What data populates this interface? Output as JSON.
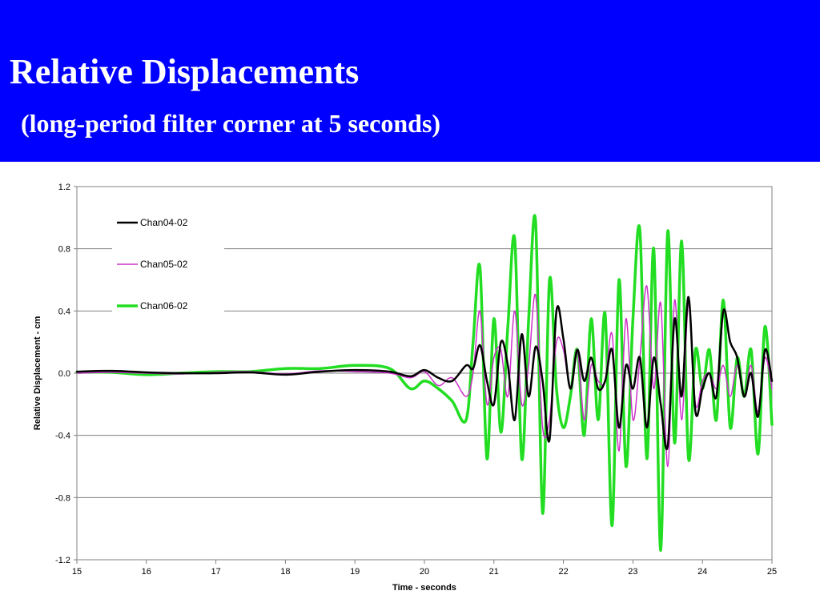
{
  "slide": {
    "title": "Relative Displacements",
    "subtitle": "(long-period filter corner at 5 seconds)",
    "header_color": "#0000ff",
    "text_color": "#ffffff"
  },
  "chart_data": {
    "type": "line",
    "title": "",
    "xlabel": "Time - seconds",
    "ylabel": "Relative Displacement - cm",
    "xlim": [
      15,
      25
    ],
    "ylim": [
      -1.2,
      1.2
    ],
    "xticks": [
      15,
      16,
      17,
      18,
      19,
      20,
      21,
      22,
      23,
      24,
      25
    ],
    "yticks": [
      -1.2,
      -0.8,
      -0.4,
      0.0,
      0.4,
      0.8,
      1.2
    ],
    "ytick_labels": [
      "-1.2",
      "-0.8",
      "-0.4",
      "0.0",
      "0.4",
      "0.8",
      "1.2"
    ],
    "grid": "horizontal",
    "legend": "top-left",
    "series": [
      {
        "name": "Chan04-02",
        "color": "#000000",
        "x": [
          15,
          15.5,
          16,
          16.5,
          17,
          17.5,
          18,
          18.5,
          19,
          19.5,
          19.8,
          20,
          20.2,
          20.4,
          20.6,
          20.7,
          20.8,
          20.9,
          21,
          21.1,
          21.2,
          21.3,
          21.4,
          21.5,
          21.6,
          21.7,
          21.8,
          21.9,
          22,
          22.1,
          22.2,
          22.3,
          22.4,
          22.5,
          22.6,
          22.7,
          22.8,
          22.9,
          23,
          23.1,
          23.2,
          23.3,
          23.4,
          23.5,
          23.6,
          23.7,
          23.8,
          23.9,
          24,
          24.1,
          24.2,
          24.3,
          24.4,
          24.5,
          24.6,
          24.7,
          24.8,
          24.9,
          25
        ],
        "y": [
          0.01,
          0.015,
          0.005,
          0.0,
          0.0,
          0.005,
          -0.01,
          0.01,
          0.02,
          0.01,
          -0.02,
          0.02,
          -0.03,
          -0.05,
          0.05,
          0.03,
          0.18,
          -0.05,
          -0.2,
          0.2,
          0.05,
          -0.3,
          0.25,
          -0.15,
          0.17,
          -0.05,
          -0.43,
          0.4,
          0.22,
          -0.1,
          0.15,
          -0.05,
          0.1,
          -0.1,
          -0.05,
          0.15,
          -0.35,
          0.05,
          -0.1,
          0.1,
          -0.35,
          0.1,
          -0.2,
          -0.47,
          0.35,
          -0.15,
          0.49,
          -0.25,
          -0.1,
          0.0,
          -0.15,
          0.4,
          0.2,
          0.1,
          -0.15,
          0.0,
          -0.28,
          0.15,
          -0.05
        ]
      },
      {
        "name": "Chan05-02",
        "color": "#cc33cc",
        "x": [
          15,
          15.5,
          16,
          16.5,
          17,
          17.5,
          18,
          18.5,
          19,
          19.5,
          19.8,
          20,
          20.2,
          20.4,
          20.6,
          20.7,
          20.8,
          20.9,
          21,
          21.1,
          21.2,
          21.3,
          21.4,
          21.5,
          21.6,
          21.7,
          21.8,
          21.9,
          22,
          22.1,
          22.2,
          22.3,
          22.4,
          22.5,
          22.6,
          22.7,
          22.8,
          22.9,
          23,
          23.1,
          23.2,
          23.3,
          23.4,
          23.5,
          23.6,
          23.7,
          23.8,
          23.9,
          24,
          24.1,
          24.2,
          24.3,
          24.4,
          24.5,
          24.6,
          24.7,
          24.8,
          24.9,
          25
        ],
        "y": [
          0.0,
          0.005,
          0.0,
          -0.005,
          0.005,
          0.01,
          -0.005,
          0.015,
          0.01,
          0.0,
          -0.03,
          0.01,
          -0.08,
          -0.03,
          -0.15,
          0.0,
          0.4,
          -0.2,
          0.1,
          0.15,
          -0.15,
          0.4,
          -0.2,
          0.05,
          0.5,
          -0.35,
          -0.3,
          0.2,
          0.15,
          -0.1,
          0.15,
          -0.3,
          0.05,
          -0.05,
          -0.05,
          0.25,
          -0.5,
          0.35,
          -0.3,
          0.1,
          0.56,
          -0.1,
          0.45,
          -0.6,
          0.47,
          -0.3,
          0.45,
          -0.2,
          -0.05,
          0.0,
          -0.1,
          0.05,
          -0.15,
          0.05,
          -0.15,
          0.05,
          -0.25,
          0.1,
          -0.1
        ]
      },
      {
        "name": "Chan06-02",
        "color": "#22dd22",
        "x": [
          15,
          15.5,
          16,
          16.5,
          17,
          17.5,
          18,
          18.5,
          19,
          19.5,
          19.8,
          20,
          20.2,
          20.4,
          20.6,
          20.7,
          20.8,
          20.9,
          21,
          21.1,
          21.2,
          21.3,
          21.4,
          21.5,
          21.6,
          21.7,
          21.8,
          21.9,
          22,
          22.1,
          22.2,
          22.3,
          22.4,
          22.5,
          22.6,
          22.7,
          22.8,
          22.9,
          23,
          23.1,
          23.2,
          23.3,
          23.4,
          23.5,
          23.6,
          23.7,
          23.8,
          23.9,
          24,
          24.1,
          24.2,
          24.3,
          24.4,
          24.5,
          24.6,
          24.7,
          24.8,
          24.9,
          25
        ],
        "y": [
          0.005,
          0.005,
          -0.01,
          0.0,
          0.01,
          0.01,
          0.03,
          0.03,
          0.05,
          0.03,
          -0.1,
          -0.05,
          -0.1,
          -0.18,
          -0.3,
          0.2,
          0.68,
          -0.55,
          0.35,
          -0.38,
          0.3,
          0.86,
          -0.55,
          0.35,
          0.97,
          -0.9,
          0.6,
          -0.1,
          -0.35,
          -0.15,
          0.15,
          -0.4,
          0.35,
          -0.3,
          0.38,
          -0.98,
          0.6,
          -0.6,
          0.35,
          0.92,
          -0.55,
          0.8,
          -1.14,
          0.91,
          -0.45,
          0.85,
          -0.55,
          0.15,
          -0.1,
          0.15,
          -0.3,
          0.47,
          -0.35,
          0.1,
          -0.15,
          0.15,
          -0.52,
          0.3,
          -0.33
        ]
      }
    ]
  }
}
